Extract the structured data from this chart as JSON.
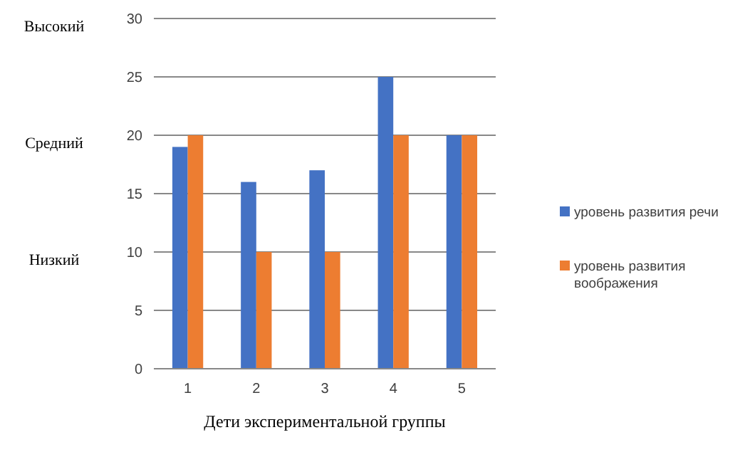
{
  "chart_data": {
    "type": "bar",
    "categories": [
      "1",
      "2",
      "3",
      "4",
      "5"
    ],
    "series": [
      {
        "name": "уровень развития речи",
        "color": "#4472c4",
        "values": [
          19,
          16,
          17,
          25,
          20
        ]
      },
      {
        "name": "уровень развития воображения",
        "color": "#ed7d31",
        "values": [
          20,
          10,
          10,
          20,
          20
        ]
      }
    ],
    "ylim": [
      0,
      30
    ],
    "yticks": [
      0,
      5,
      10,
      15,
      20,
      25,
      30
    ],
    "grid": "y",
    "legend": "right",
    "xlabel": "Дети экспериментальной группы",
    "annotations": [
      "Высокий",
      "Средний",
      "Низкий"
    ]
  }
}
